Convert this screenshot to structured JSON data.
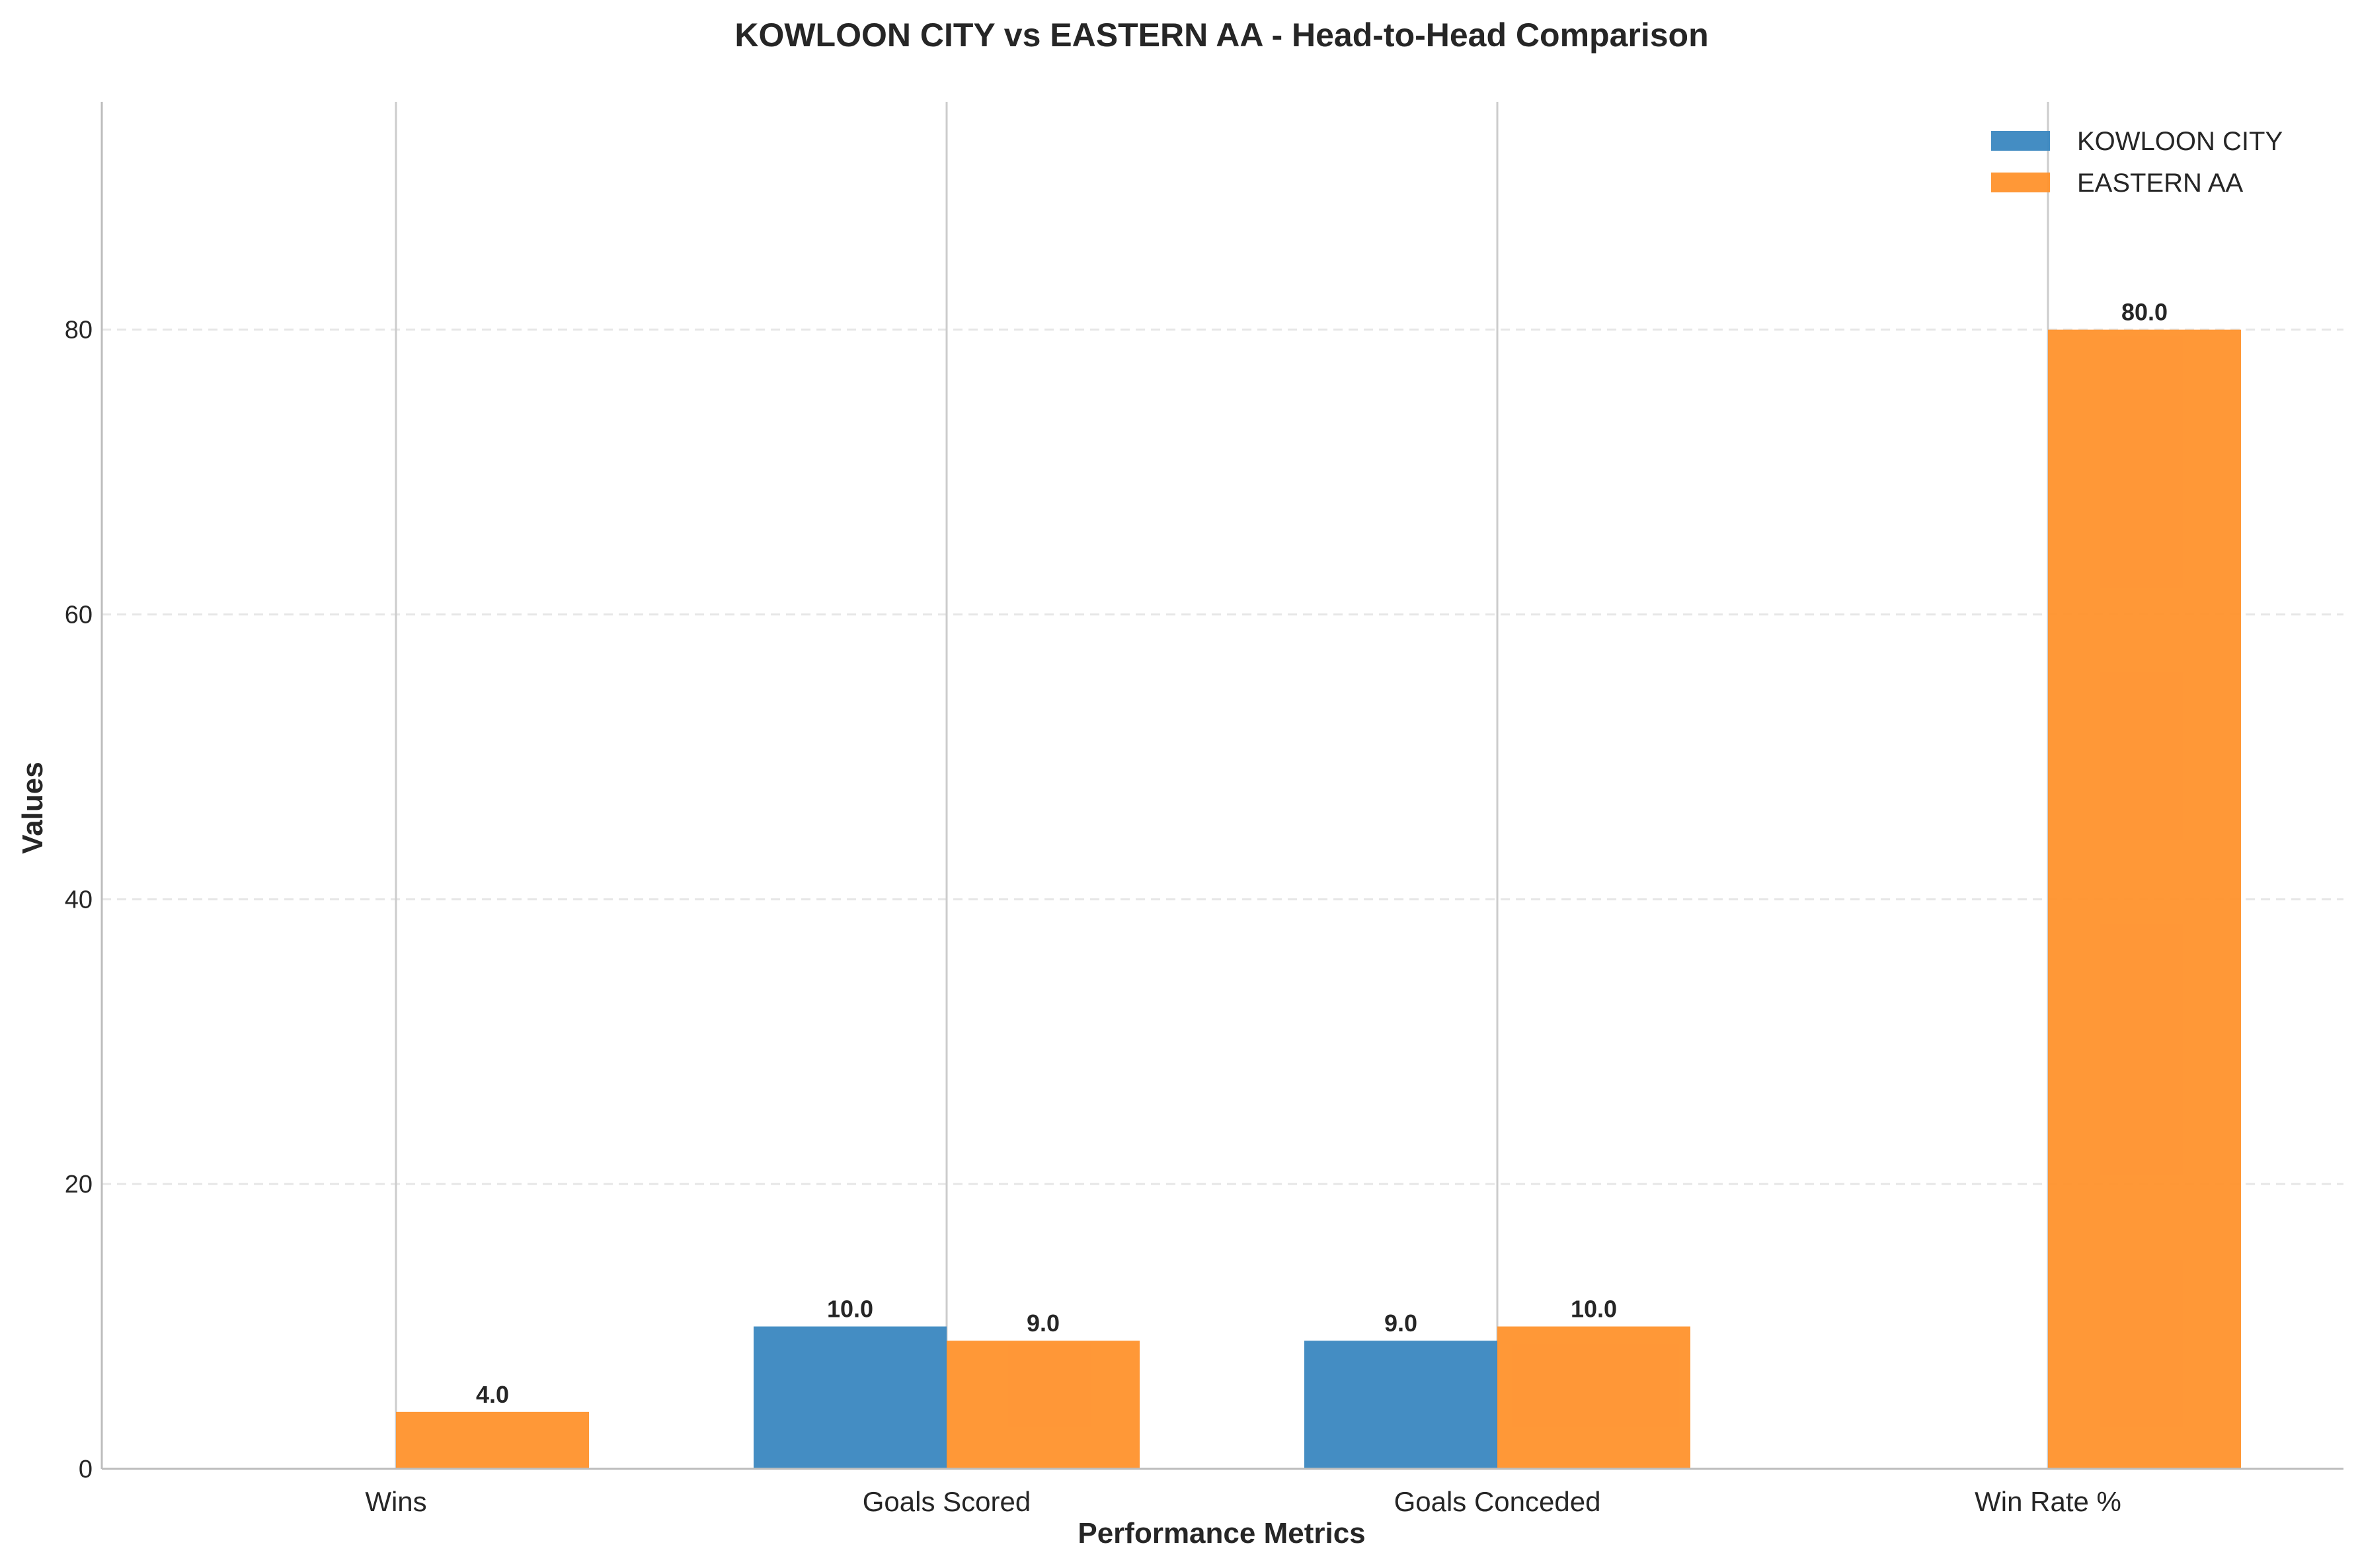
{
  "chart_data": {
    "type": "bar",
    "title": "KOWLOON CITY vs EASTERN AA - Head-to-Head Comparison",
    "xlabel": "Performance Metrics",
    "ylabel": "Values",
    "categories": [
      "Wins",
      "Goals Scored",
      "Goals Conceded",
      "Win Rate %"
    ],
    "series": [
      {
        "name": "KOWLOON CITY",
        "values": [
          0,
          10,
          9,
          0
        ],
        "value_labels": [
          "",
          "10.0",
          "9.0",
          ""
        ],
        "color": "#3a87c0"
      },
      {
        "name": "EASTERN AA",
        "values": [
          4,
          9,
          10,
          80
        ],
        "value_labels": [
          "4.0",
          "9.0",
          "10.0",
          "80.0"
        ],
        "color": "#ff922c"
      }
    ],
    "ylim": [
      0,
      96
    ],
    "yticks": [
      0,
      20,
      40,
      60,
      80
    ],
    "grid": "y-dashed",
    "legend": "top-right"
  }
}
